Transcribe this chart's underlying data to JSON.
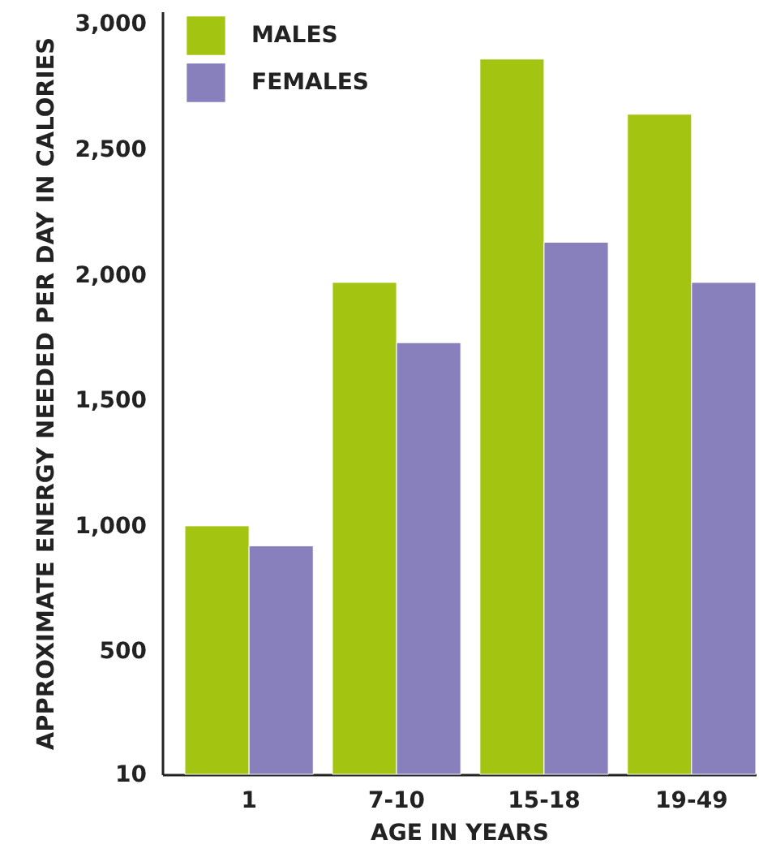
{
  "chart_data": {
    "type": "bar",
    "xlabel": "AGE IN YEARS",
    "ylabel": "APPROXIMATE ENERGY NEEDED PER DAY IN CALORIES",
    "categories": [
      "1",
      "7-10",
      "15-18",
      "19-49"
    ],
    "series": [
      {
        "name": "MALES",
        "color": "#a4c412",
        "values": [
          1000,
          1970,
          2860,
          2640
        ]
      },
      {
        "name": "FEMALES",
        "color": "#8780bc",
        "values": [
          920,
          1730,
          2130,
          1970
        ]
      }
    ],
    "ylim": [
      10,
      3050
    ],
    "yticks": [
      10,
      500,
      {
        "value": 1000,
        "label": "1,000"
      },
      {
        "value": 1500,
        "label": "1,500"
      },
      {
        "value": 2000,
        "label": "2,000"
      },
      {
        "value": 2500,
        "label": "2,500"
      },
      {
        "value": 3000,
        "label": "3,000"
      }
    ],
    "legend": "top left",
    "grid": false
  }
}
